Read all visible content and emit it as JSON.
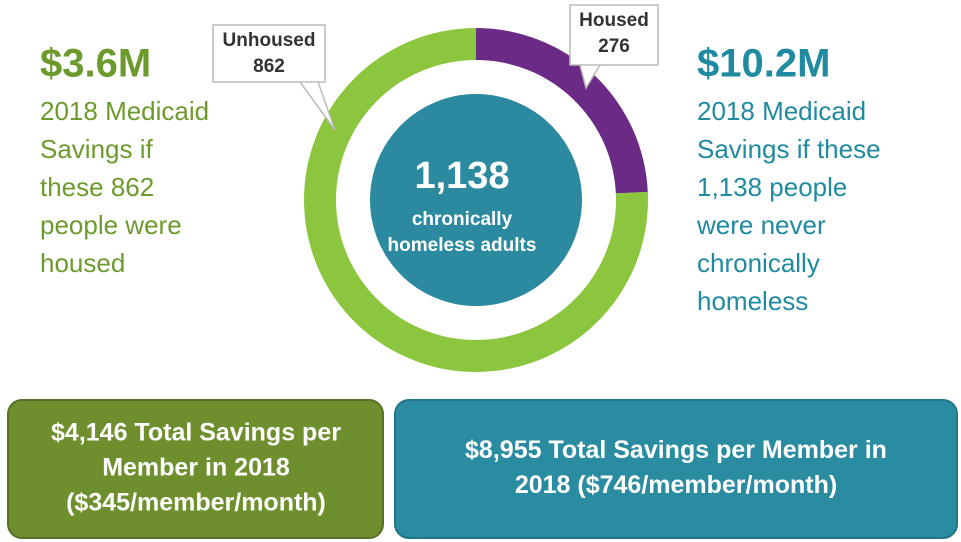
{
  "chart_data": {
    "type": "donut",
    "categories": [
      "Unhoused",
      "Housed"
    ],
    "values": [
      862,
      276
    ],
    "colors": [
      "#8cc63f",
      "#6b2a86"
    ],
    "center_value": "1,138",
    "center_text": [
      "chronically",
      "homeless adults"
    ],
    "center_color": "#2b8aa0"
  },
  "left_callout": {
    "amount": "$3.6M",
    "lines": [
      "2018 Medicaid",
      "Savings if",
      "these 862",
      "people were",
      "housed"
    ]
  },
  "right_callout": {
    "amount": "$10.2M",
    "lines": [
      "2018 Medicaid",
      "Savings if these",
      "1,138 people",
      "were never",
      "chronically",
      "homeless"
    ]
  },
  "boxes": [
    {
      "lines": [
        "$4,146 Total Savings per",
        "Member in 2018",
        "($345/member/month)"
      ]
    },
    {
      "lines": [
        "$8,955 Total Savings per Member in",
        "2018 ($746/member/month)"
      ]
    }
  ]
}
